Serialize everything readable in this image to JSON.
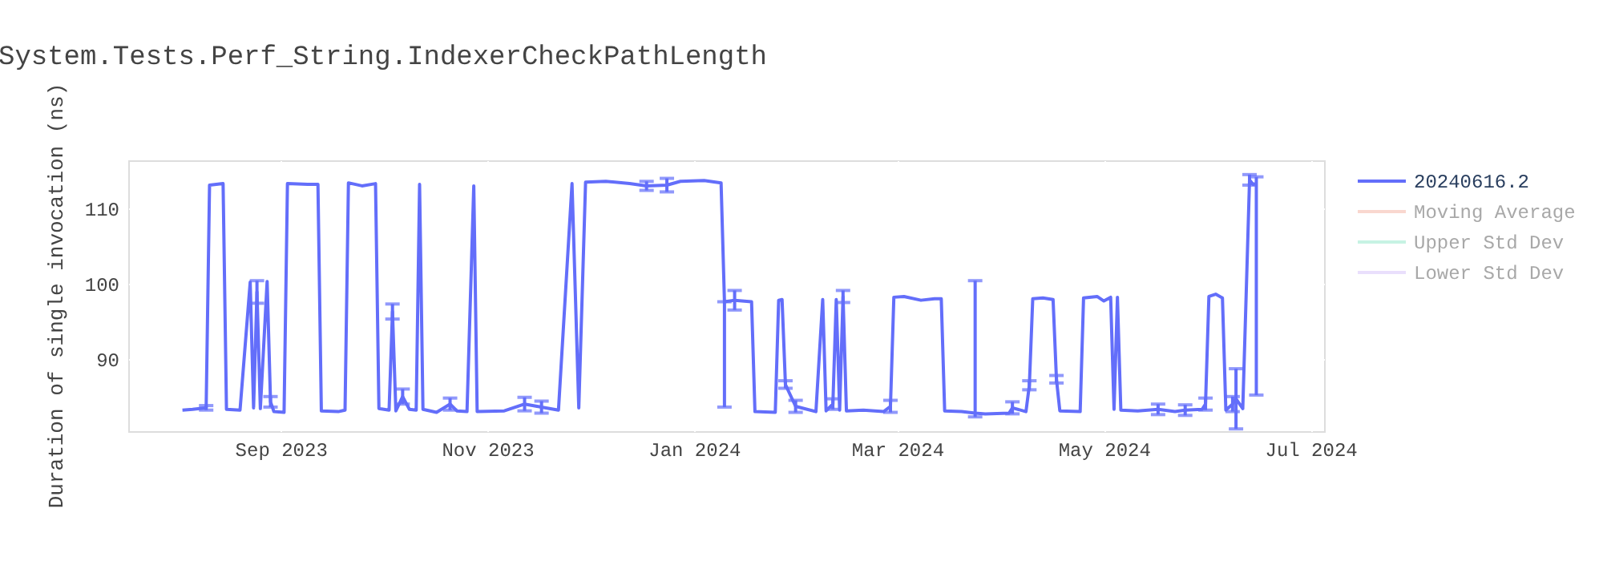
{
  "chart_data": {
    "type": "line",
    "title": "System.Tests.Perf_String.IndexerCheckPathLength",
    "ylabel": "Duration of single invocation (ns)",
    "xlim": [
      "2023-07-18",
      "2024-07-05"
    ],
    "xticks": [
      {
        "value": "2023-09-01",
        "label": "Sep 2023"
      },
      {
        "value": "2023-11-01",
        "label": "Nov 2023"
      },
      {
        "value": "2024-01-01",
        "label": "Jan 2024"
      },
      {
        "value": "2024-03-01",
        "label": "Mar 2024"
      },
      {
        "value": "2024-05-01",
        "label": "May 2024"
      },
      {
        "value": "2024-07-01",
        "label": "Jul 2024"
      }
    ],
    "ylim": [
      80.4,
      116.4
    ],
    "yticks": [
      90,
      100,
      110
    ],
    "grid": true,
    "legend": "top right",
    "line_style": "solid",
    "marker": "none",
    "x": [
      "2023-08-03",
      "2023-08-06",
      "2023-08-10",
      "2023-08-11",
      "2023-08-15",
      "2023-08-16",
      "2023-08-20",
      "2023-08-23",
      "2023-08-24",
      "2023-08-25",
      "2023-08-26",
      "2023-08-28",
      "2023-08-29",
      "2023-08-30",
      "2023-09-02",
      "2023-09-03",
      "2023-09-09",
      "2023-09-12",
      "2023-09-13",
      "2023-09-18",
      "2023-09-20",
      "2023-09-21",
      "2023-09-25",
      "2023-09-29",
      "2023-09-30",
      "2023-10-03",
      "2023-10-04",
      "2023-10-05",
      "2023-10-07",
      "2023-10-09",
      "2023-10-11",
      "2023-10-12",
      "2023-10-13",
      "2023-10-17",
      "2023-10-21",
      "2023-10-23",
      "2023-10-26",
      "2023-10-28",
      "2023-10-29",
      "2023-11-06",
      "2023-11-12",
      "2023-11-17",
      "2023-11-22",
      "2023-11-26",
      "2023-11-28",
      "2023-11-30",
      "2023-12-06",
      "2023-12-13",
      "2023-12-18",
      "2023-12-24",
      "2023-12-28",
      "2024-01-04",
      "2024-01-09",
      "2024-01-10",
      "2024-01-13",
      "2024-01-18",
      "2024-01-19",
      "2024-01-25",
      "2024-01-26",
      "2024-01-27",
      "2024-01-28",
      "2024-01-31",
      "2024-02-06",
      "2024-02-08",
      "2024-02-09",
      "2024-02-11",
      "2024-02-12",
      "2024-02-13",
      "2024-02-14",
      "2024-02-15",
      "2024-02-20",
      "2024-02-26",
      "2024-02-28",
      "2024-02-29",
      "2024-03-03",
      "2024-03-08",
      "2024-03-12",
      "2024-03-14",
      "2024-03-15",
      "2024-03-20",
      "2024-03-24",
      "2024-03-27",
      "2024-04-03",
      "2024-04-04",
      "2024-04-08",
      "2024-04-09",
      "2024-04-10",
      "2024-04-13",
      "2024-04-16",
      "2024-04-17",
      "2024-04-18",
      "2024-04-24",
      "2024-04-25",
      "2024-04-29",
      "2024-05-01",
      "2024-05-03",
      "2024-05-04",
      "2024-05-05",
      "2024-05-06",
      "2024-05-11",
      "2024-05-17",
      "2024-05-22",
      "2024-05-25",
      "2024-05-30",
      "2024-05-31",
      "2024-06-01",
      "2024-06-03",
      "2024-06-05",
      "2024-06-06",
      "2024-06-08",
      "2024-06-09",
      "2024-06-11",
      "2024-06-12",
      "2024-06-13",
      "2024-06-14",
      "2024-06-15"
    ],
    "series": [
      {
        "name": "20240616.2",
        "color": "#636efa",
        "values": [
          83.2,
          83.3,
          83.5,
          113.1,
          113.3,
          83.3,
          83.2,
          100.2,
          83.5,
          98.9,
          83.4,
          100.3,
          84.3,
          83.0,
          82.9,
          113.3,
          113.2,
          113.2,
          83.1,
          83.0,
          83.2,
          113.4,
          113.0,
          113.3,
          83.4,
          83.2,
          96.3,
          83.1,
          85.0,
          83.3,
          83.2,
          113.2,
          83.3,
          82.9,
          84.0,
          83.1,
          83.0,
          113.0,
          83.0,
          83.1,
          84.0,
          83.6,
          83.2,
          113.3,
          83.5,
          113.5,
          113.6,
          113.3,
          113.0,
          113.1,
          113.6,
          113.7,
          113.4,
          97.6,
          97.8,
          97.6,
          83.0,
          82.9,
          97.8,
          97.9,
          86.6,
          83.7,
          83.0,
          97.9,
          83.1,
          84.0,
          97.9,
          83.2,
          98.3,
          83.1,
          83.2,
          83.0,
          83.7,
          98.2,
          98.3,
          97.8,
          98.0,
          98.0,
          83.1,
          83.0,
          82.8,
          82.7,
          82.8,
          83.5,
          83.0,
          86.5,
          98.0,
          98.1,
          97.9,
          87.3,
          83.1,
          83.0,
          98.1,
          98.3,
          97.7,
          98.2,
          83.3,
          98.2,
          83.2,
          83.1,
          83.3,
          83.0,
          83.2,
          83.3,
          84.0,
          98.3,
          98.6,
          98.1,
          83.2,
          84.0,
          84.7,
          83.4,
          98.5,
          113.8,
          113.2,
          113.3
        ],
        "errors": [
          null,
          null,
          0.3,
          null,
          null,
          null,
          null,
          null,
          null,
          1.5,
          null,
          null,
          0.7,
          null,
          null,
          null,
          null,
          null,
          null,
          null,
          null,
          null,
          null,
          null,
          null,
          null,
          1.0,
          null,
          1.0,
          null,
          null,
          null,
          null,
          null,
          0.8,
          null,
          null,
          null,
          null,
          null,
          0.9,
          0.8,
          null,
          null,
          null,
          null,
          null,
          null,
          0.6,
          0.9,
          null,
          null,
          null,
          [
            83.6,
            97.6
          ],
          1.3,
          null,
          null,
          null,
          null,
          null,
          0.5,
          0.8,
          null,
          null,
          null,
          0.7,
          null,
          null,
          0.8,
          null,
          null,
          null,
          0.8,
          null,
          null,
          null,
          null,
          null,
          null,
          null,
          [
            82.3,
            100.4
          ],
          null,
          null,
          0.8,
          null,
          0.6,
          null,
          null,
          null,
          0.5,
          null,
          null,
          null,
          null,
          null,
          null,
          null,
          null,
          null,
          null,
          0.7,
          null,
          0.7,
          null,
          0.8,
          null,
          null,
          null,
          null,
          1.0,
          4.0,
          null,
          null,
          0.7,
          null,
          [
            85.2,
            114.2
          ]
        ]
      },
      {
        "name": "Moving Average",
        "color": "#f4b0a0",
        "values": [
          null,
          null,
          null,
          null,
          null,
          null,
          null,
          null,
          null,
          null,
          null,
          null,
          null,
          null,
          null,
          null,
          null,
          null,
          null,
          null,
          null,
          null,
          null,
          null,
          null,
          null,
          null,
          null,
          null,
          null,
          null,
          null,
          null,
          null,
          null,
          null,
          null,
          null,
          null,
          null,
          null,
          null,
          null,
          null,
          null,
          null,
          null,
          null,
          null,
          null,
          null,
          null,
          null,
          null,
          null,
          null,
          null,
          null,
          null,
          null,
          null,
          null,
          null,
          null,
          null,
          null,
          null,
          null,
          null,
          null,
          null,
          null,
          null,
          null,
          null,
          null,
          null,
          null,
          null,
          null,
          null,
          null,
          null,
          null,
          null,
          null,
          null,
          null,
          null,
          null,
          null,
          null,
          null,
          null,
          null,
          null,
          null,
          null,
          null,
          null,
          null,
          null,
          null,
          null,
          null,
          null,
          null,
          null,
          null,
          null,
          null,
          null,
          null,
          null,
          null,
          null
        ]
      },
      {
        "name": "Upper Std Dev",
        "color": "#8fe8c8",
        "values": [
          null,
          null,
          null,
          null,
          null,
          null,
          null,
          null,
          null,
          null,
          null,
          null,
          null,
          null,
          null,
          null,
          null,
          null,
          null,
          null,
          null,
          null,
          null,
          null,
          null,
          null,
          null,
          null,
          null,
          null,
          null,
          null,
          null,
          null,
          null,
          null,
          null,
          null,
          null,
          null,
          null,
          null,
          null,
          null,
          null,
          null,
          null,
          null,
          null,
          null,
          null,
          null,
          null,
          null,
          null,
          null,
          null,
          null,
          null,
          null,
          null,
          null,
          null,
          null,
          null,
          null,
          null,
          null,
          null,
          null,
          null,
          null,
          null,
          null,
          null,
          null,
          null,
          null,
          null,
          null,
          null,
          null,
          null,
          null,
          null,
          null,
          null,
          null,
          null,
          null,
          null,
          null,
          null,
          null,
          null,
          null,
          null,
          null,
          null,
          null,
          null,
          null,
          null,
          null,
          null,
          null,
          null,
          null,
          null,
          null,
          null,
          null,
          null,
          null,
          null,
          null
        ]
      },
      {
        "name": "Lower Std Dev",
        "color": "#d4c0fa",
        "values": [
          null,
          null,
          null,
          null,
          null,
          null,
          null,
          null,
          null,
          null,
          null,
          null,
          null,
          null,
          null,
          null,
          null,
          null,
          null,
          null,
          null,
          null,
          null,
          null,
          null,
          null,
          null,
          null,
          null,
          null,
          null,
          null,
          null,
          null,
          null,
          null,
          null,
          null,
          null,
          null,
          null,
          null,
          null,
          null,
          null,
          null,
          null,
          null,
          null,
          null,
          null,
          null,
          null,
          null,
          null,
          null,
          null,
          null,
          null,
          null,
          null,
          null,
          null,
          null,
          null,
          null,
          null,
          null,
          null,
          null,
          null,
          null,
          null,
          null,
          null,
          null,
          null,
          null,
          null,
          null,
          null,
          null,
          null,
          null,
          null,
          null,
          null,
          null,
          null,
          null,
          null,
          null,
          null,
          null,
          null,
          null,
          null,
          null,
          null,
          null,
          null,
          null,
          null,
          null,
          null,
          null,
          null,
          null,
          null,
          null,
          null,
          null,
          null,
          null,
          null,
          null
        ]
      }
    ]
  }
}
